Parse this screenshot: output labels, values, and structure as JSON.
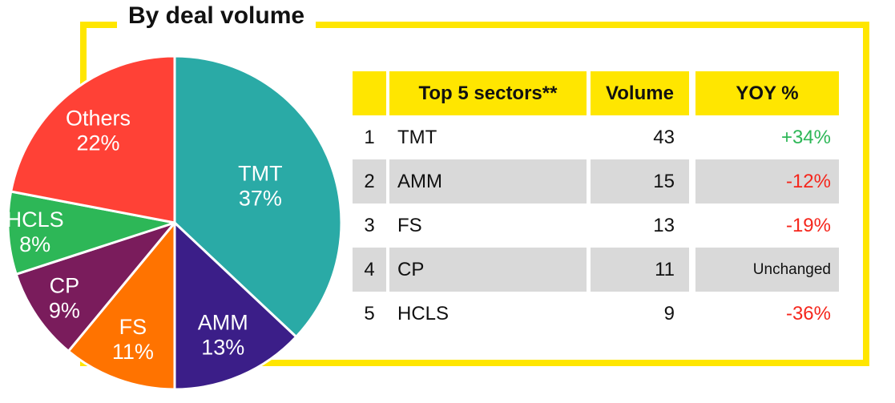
{
  "title": "By deal volume",
  "chart_data": {
    "type": "pie",
    "title": "By deal volume",
    "categories": [
      "TMT",
      "AMM",
      "FS",
      "CP",
      "HCLS",
      "Others"
    ],
    "values": [
      37,
      13,
      11,
      9,
      8,
      22
    ],
    "unit": "%",
    "start_angle_deg": 0,
    "direction": "clockwise",
    "slice_colors": [
      "#2AAAA6",
      "#3B1E88",
      "#FF7300",
      "#7A1C5C",
      "#2DB757",
      "#FF4136"
    ],
    "label_color": "#ffffff"
  },
  "table": {
    "headers": {
      "rank": "",
      "sector": "Top 5 sectors**",
      "volume": "Volume",
      "yoy": "YOY %"
    },
    "rows": [
      {
        "rank": "1",
        "sector": "TMT",
        "volume": "43",
        "yoy": "+34%",
        "trend": "up"
      },
      {
        "rank": "2",
        "sector": "AMM",
        "volume": "15",
        "yoy": "-12%",
        "trend": "down"
      },
      {
        "rank": "3",
        "sector": "FS",
        "volume": "13",
        "yoy": "-19%",
        "trend": "down"
      },
      {
        "rank": "4",
        "sector": "CP",
        "volume": "11",
        "yoy": "Unchanged",
        "trend": "flat"
      },
      {
        "rank": "5",
        "sector": "HCLS",
        "volume": "9",
        "yoy": "-36%",
        "trend": "down"
      }
    ]
  },
  "colors": {
    "accent_yellow": "#FFE600",
    "row_stripe_gray": "#D9D9D9",
    "yoy_green": "#2DB757",
    "yoy_red": "#F5261C",
    "text_black": "#111111"
  }
}
